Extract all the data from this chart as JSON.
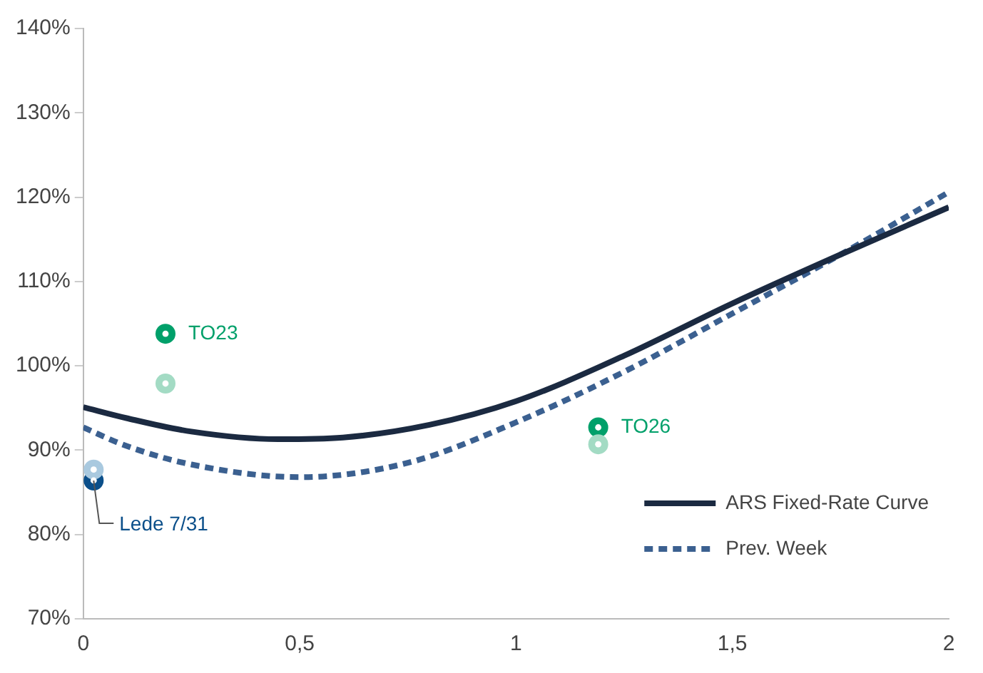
{
  "chart_data": {
    "type": "line",
    "xlim": [
      0,
      2
    ],
    "ylim": [
      70,
      140
    ],
    "xticks": [
      0,
      {
        "value": 0.5,
        "label": "0,5"
      },
      1,
      {
        "value": 1.5,
        "label": "1,5"
      },
      2
    ],
    "yticks": [
      {
        "value": 70,
        "label": "70%"
      },
      {
        "value": 80,
        "label": "80%"
      },
      {
        "value": 90,
        "label": "90%"
      },
      {
        "value": 100,
        "label": "100%"
      },
      {
        "value": 110,
        "label": "110%"
      },
      {
        "value": 120,
        "label": "120%"
      },
      {
        "value": 130,
        "label": "130%"
      },
      {
        "value": 140,
        "label": "140%"
      }
    ],
    "grid": false,
    "legend": "bottom right",
    "marker": "none",
    "series": [
      {
        "name": "ARS Fixed-Rate Curve",
        "color": "#1b2a41",
        "line_style": "solid",
        "x": [
          0,
          0.1,
          0.25,
          0.45,
          0.6,
          0.8,
          1,
          1.25,
          1.5,
          1.75,
          2
        ],
        "values": [
          95.1,
          93.8,
          92.2,
          91.3,
          91.5,
          93,
          95.8,
          101.2,
          107.4,
          113.2,
          118.8
        ]
      },
      {
        "name": "Prev. Week",
        "color": "#3b6090",
        "line_style": "dashed",
        "x": [
          0,
          0.1,
          0.25,
          0.5,
          0.75,
          1,
          1.25,
          1.5,
          1.75,
          2
        ],
        "values": [
          92.7,
          90.5,
          88.3,
          86.8,
          88.5,
          93.3,
          99.3,
          106.2,
          113.2,
          120.6
        ]
      },
      {
        "type": "scatter",
        "marker": "circle",
        "colors": [
          "#a9c9df",
          "#a3dbc4",
          "#a3dbc4"
        ],
        "x": [
          0.024,
          0.19,
          1.19
        ],
        "values": [
          87.7,
          97.9,
          90.7
        ]
      },
      {
        "type": "scatter",
        "marker": "circle",
        "colors": [
          "#0b4f8a",
          "#00a06a",
          "#00a06a"
        ],
        "x": [
          0.024,
          0.19,
          1.19
        ],
        "values": [
          86.4,
          103.8,
          92.7
        ]
      }
    ],
    "annotations": [
      {
        "text": "Lede 7/31",
        "x": 0.024,
        "y": 86.4
      },
      {
        "text": "TO23",
        "x": 0.19,
        "y": 103.8
      },
      {
        "text": "TO26",
        "x": 1.19,
        "y": 92.7
      }
    ]
  }
}
